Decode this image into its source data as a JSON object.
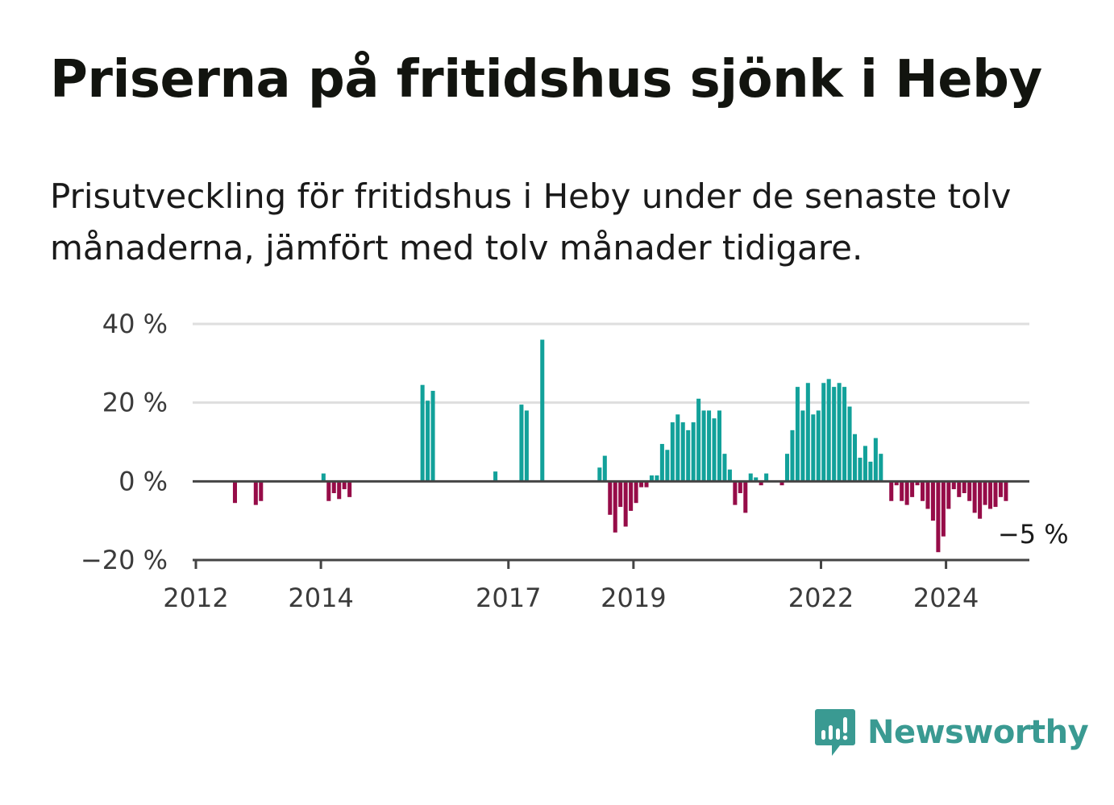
{
  "title": "Priserna på fritidshus sjönk i Heby",
  "subtitle": "Prisutveckling för fritidshus i Heby under de senaste tolv månaderna, jämfört med tolv månader tidigare.",
  "brand": {
    "name": "Newsworthy",
    "icon": "newsworthy-logo-icon",
    "color": "#3a9a92"
  },
  "chart_data": {
    "type": "bar",
    "title": "Priserna på fritidshus sjönk i Heby",
    "xlabel": "",
    "ylabel": "",
    "unit": "%",
    "ylim": [
      -20,
      40
    ],
    "y_ticks": [
      {
        "value": -20,
        "label": "−20 %"
      },
      {
        "value": 0,
        "label": "0 %"
      },
      {
        "value": 20,
        "label": "20 %"
      },
      {
        "value": 40,
        "label": "40 %"
      }
    ],
    "x_ticks": [
      {
        "year": 2012,
        "label": "2012"
      },
      {
        "year": 2014,
        "label": "2014"
      },
      {
        "year": 2017,
        "label": "2017"
      },
      {
        "year": 2019,
        "label": "2019"
      },
      {
        "year": 2022,
        "label": "2022"
      },
      {
        "year": 2024,
        "label": "2024"
      }
    ],
    "grid": true,
    "colors": {
      "positive": "#12a19a",
      "negative": "#960c48"
    },
    "start": "2012-01",
    "end": "2025-05",
    "series": [
      {
        "name": "Prisutveckling (%)",
        "points": [
          {
            "date": "2012-08",
            "value": -5.5
          },
          {
            "date": "2012-12",
            "value": -6
          },
          {
            "date": "2013-01",
            "value": -5
          },
          {
            "date": "2014-01",
            "value": 2
          },
          {
            "date": "2014-02",
            "value": -5
          },
          {
            "date": "2014-03",
            "value": -3
          },
          {
            "date": "2014-04",
            "value": -4.5
          },
          {
            "date": "2014-05",
            "value": -2
          },
          {
            "date": "2014-06",
            "value": -4
          },
          {
            "date": "2015-08",
            "value": 24.5
          },
          {
            "date": "2015-09",
            "value": 20.5
          },
          {
            "date": "2015-10",
            "value": 23
          },
          {
            "date": "2016-10",
            "value": 2.5
          },
          {
            "date": "2017-03",
            "value": 19.5
          },
          {
            "date": "2017-04",
            "value": 18
          },
          {
            "date": "2017-07",
            "value": 36
          },
          {
            "date": "2018-06",
            "value": 3.5
          },
          {
            "date": "2018-07",
            "value": 6.5
          },
          {
            "date": "2018-08",
            "value": -8.5
          },
          {
            "date": "2018-09",
            "value": -13
          },
          {
            "date": "2018-10",
            "value": -6.5
          },
          {
            "date": "2018-11",
            "value": -11.5
          },
          {
            "date": "2018-12",
            "value": -7.5
          },
          {
            "date": "2019-01",
            "value": -5.5
          },
          {
            "date": "2019-02",
            "value": -1.5
          },
          {
            "date": "2019-03",
            "value": -1.5
          },
          {
            "date": "2019-04",
            "value": 1.5
          },
          {
            "date": "2019-05",
            "value": 1.5
          },
          {
            "date": "2019-06",
            "value": 9.5
          },
          {
            "date": "2019-07",
            "value": 8
          },
          {
            "date": "2019-08",
            "value": 15
          },
          {
            "date": "2019-09",
            "value": 17
          },
          {
            "date": "2019-10",
            "value": 15
          },
          {
            "date": "2019-11",
            "value": 13
          },
          {
            "date": "2019-12",
            "value": 15
          },
          {
            "date": "2020-01",
            "value": 21
          },
          {
            "date": "2020-02",
            "value": 18
          },
          {
            "date": "2020-03",
            "value": 18
          },
          {
            "date": "2020-04",
            "value": 16
          },
          {
            "date": "2020-05",
            "value": 18
          },
          {
            "date": "2020-06",
            "value": 7
          },
          {
            "date": "2020-07",
            "value": 3
          },
          {
            "date": "2020-08",
            "value": -6
          },
          {
            "date": "2020-09",
            "value": -3
          },
          {
            "date": "2020-10",
            "value": -8
          },
          {
            "date": "2020-11",
            "value": 2
          },
          {
            "date": "2020-12",
            "value": 1
          },
          {
            "date": "2021-01",
            "value": -1
          },
          {
            "date": "2021-02",
            "value": 2
          },
          {
            "date": "2021-05",
            "value": -1
          },
          {
            "date": "2021-06",
            "value": 7
          },
          {
            "date": "2021-07",
            "value": 13
          },
          {
            "date": "2021-08",
            "value": 24
          },
          {
            "date": "2021-09",
            "value": 18
          },
          {
            "date": "2021-10",
            "value": 25
          },
          {
            "date": "2021-11",
            "value": 17
          },
          {
            "date": "2021-12",
            "value": 18
          },
          {
            "date": "2022-01",
            "value": 25
          },
          {
            "date": "2022-02",
            "value": 26
          },
          {
            "date": "2022-03",
            "value": 24
          },
          {
            "date": "2022-04",
            "value": 25
          },
          {
            "date": "2022-05",
            "value": 24
          },
          {
            "date": "2022-06",
            "value": 19
          },
          {
            "date": "2022-07",
            "value": 12
          },
          {
            "date": "2022-08",
            "value": 6
          },
          {
            "date": "2022-09",
            "value": 9
          },
          {
            "date": "2022-10",
            "value": 5
          },
          {
            "date": "2022-11",
            "value": 11
          },
          {
            "date": "2022-12",
            "value": 7
          },
          {
            "date": "2023-02",
            "value": -5
          },
          {
            "date": "2023-03",
            "value": -1
          },
          {
            "date": "2023-04",
            "value": -5
          },
          {
            "date": "2023-05",
            "value": -6
          },
          {
            "date": "2023-06",
            "value": -4
          },
          {
            "date": "2023-07",
            "value": -1
          },
          {
            "date": "2023-08",
            "value": -5
          },
          {
            "date": "2023-09",
            "value": -7
          },
          {
            "date": "2023-10",
            "value": -10
          },
          {
            "date": "2023-11",
            "value": -18
          },
          {
            "date": "2023-12",
            "value": -14
          },
          {
            "date": "2024-01",
            "value": -7
          },
          {
            "date": "2024-02",
            "value": -2
          },
          {
            "date": "2024-03",
            "value": -4
          },
          {
            "date": "2024-04",
            "value": -3
          },
          {
            "date": "2024-05",
            "value": -5
          },
          {
            "date": "2024-06",
            "value": -8
          },
          {
            "date": "2024-07",
            "value": -9.5
          },
          {
            "date": "2024-08",
            "value": -6
          },
          {
            "date": "2024-09",
            "value": -7
          },
          {
            "date": "2024-10",
            "value": -6.5
          },
          {
            "date": "2024-11",
            "value": -4
          },
          {
            "date": "2024-12",
            "value": -5
          }
        ]
      }
    ],
    "annotations": [
      {
        "date": "2024-12",
        "value": -5,
        "label": "−5 %"
      }
    ]
  }
}
